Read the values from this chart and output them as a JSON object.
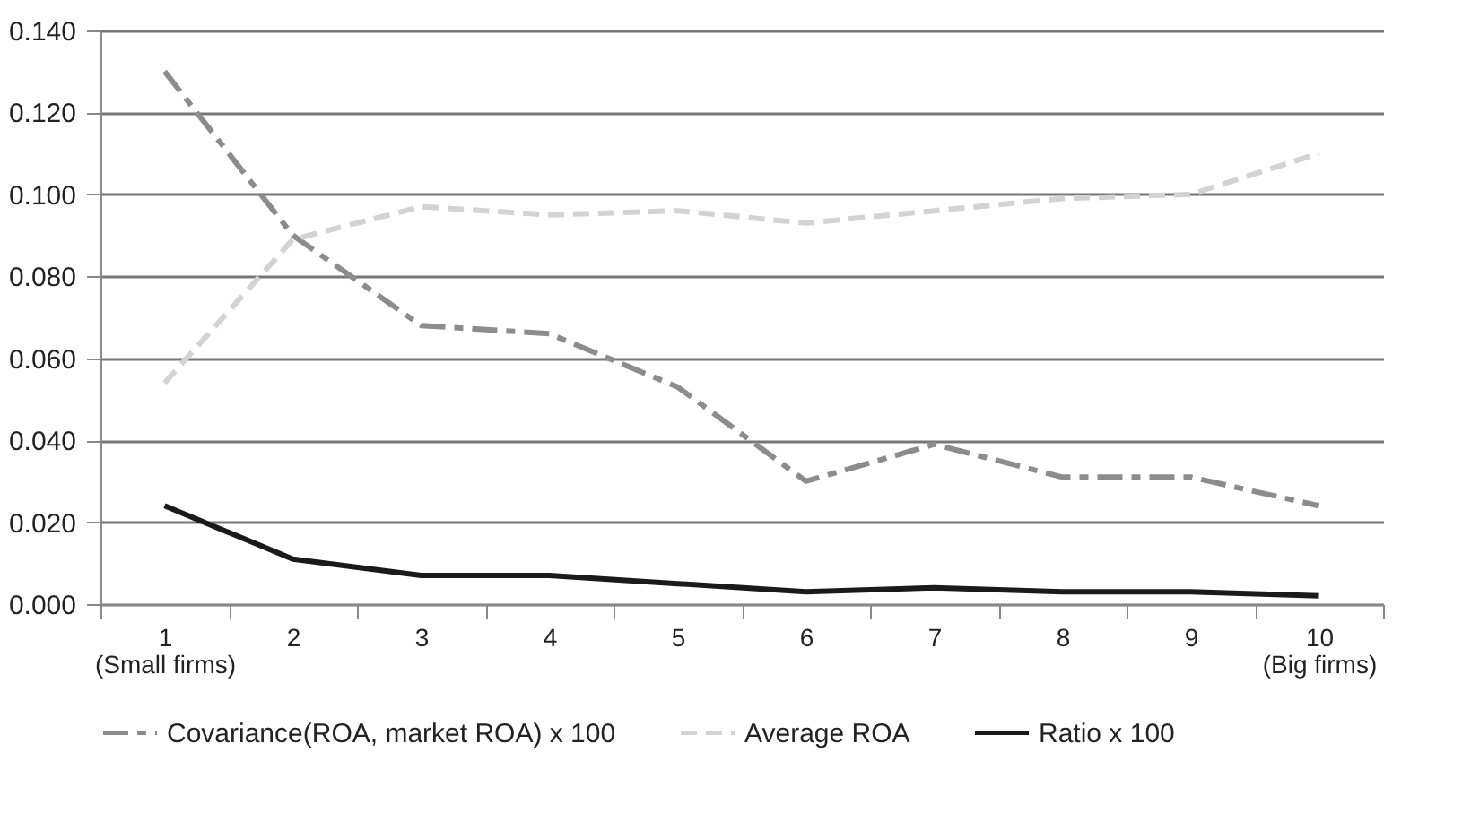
{
  "chart_data": {
    "type": "line",
    "categories": [
      "1 (Small firms)",
      "2",
      "3",
      "4",
      "5",
      "6",
      "7",
      "8",
      "9",
      "10 (Big firms)"
    ],
    "series": [
      {
        "name": "Covariance(ROA, market ROA) x 100",
        "color": "#8c8c8c",
        "line_style": "dashed",
        "values": [
          0.13,
          0.09,
          0.068,
          0.066,
          0.053,
          0.03,
          0.039,
          0.031,
          0.031,
          0.024
        ]
      },
      {
        "name": "Average ROA",
        "color": "#d3d3d3",
        "line_style": "dashed",
        "values": [
          0.054,
          0.089,
          0.097,
          0.095,
          0.096,
          0.093,
          0.096,
          0.099,
          0.1,
          0.11
        ]
      },
      {
        "name": "Ratio x 100",
        "color": "#1a1a1a",
        "line_style": "solid",
        "values": [
          0.024,
          0.011,
          0.007,
          0.007,
          0.005,
          0.003,
          0.004,
          0.003,
          0.003,
          0.002
        ]
      }
    ],
    "ylim": [
      0,
      0.14
    ],
    "yticks": [
      {
        "value": 0,
        "label": "0.000"
      },
      {
        "value": 0.02,
        "label": "0.020"
      },
      {
        "value": 0.04,
        "label": "0.040"
      },
      {
        "value": 0.06,
        "label": "0.060"
      },
      {
        "value": 0.08,
        "label": "0.080"
      },
      {
        "value": 0.1,
        "label": "0.100"
      },
      {
        "value": 0.12,
        "label": "0.120"
      },
      {
        "value": 0.14,
        "label": "0.140"
      }
    ],
    "grid": "y",
    "legend": "bottom",
    "marker": "none"
  }
}
